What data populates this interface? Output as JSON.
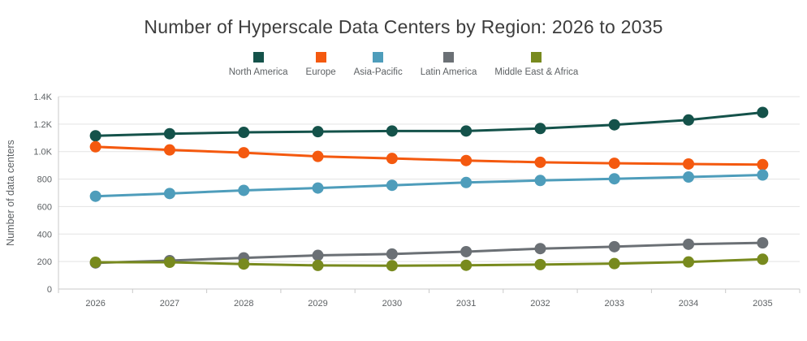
{
  "title": "Number of Hyperscale Data Centers by Region: 2026 to 2035",
  "chart_data": {
    "type": "line",
    "title": "Number of Hyperscale Data Centers by Region: 2026 to 2035",
    "xlabel": "",
    "ylabel": "Number of data centers",
    "categories": [
      "2026",
      "2027",
      "2028",
      "2029",
      "2030",
      "2031",
      "2032",
      "2033",
      "2034",
      "2035"
    ],
    "series": [
      {
        "name": "North America",
        "color": "#14524A",
        "values": [
          1115,
          1130,
          1140,
          1145,
          1150,
          1150,
          1168,
          1195,
          1230,
          1285
        ]
      },
      {
        "name": "Europe",
        "color": "#F4590F",
        "values": [
          1035,
          1012,
          992,
          965,
          950,
          935,
          922,
          915,
          910,
          905
        ]
      },
      {
        "name": "Asia-Pacific",
        "color": "#4E9DBB",
        "values": [
          675,
          695,
          718,
          735,
          755,
          775,
          790,
          802,
          815,
          830
        ]
      },
      {
        "name": "Latin America",
        "color": "#6B7075",
        "values": [
          190,
          207,
          227,
          245,
          255,
          272,
          294,
          308,
          326,
          336
        ]
      },
      {
        "name": "Middle East & Africa",
        "color": "#788A1E",
        "values": [
          195,
          195,
          182,
          172,
          170,
          173,
          178,
          185,
          197,
          217
        ]
      }
    ],
    "ylim": [
      0,
      1400
    ],
    "y_tick_step": 200,
    "y_tick_labels": [
      "0",
      "200",
      "400",
      "600",
      "800",
      "1.0K",
      "1.2K",
      "1.4K"
    ],
    "grid": true,
    "legend_position": "top"
  },
  "style_colors": {
    "title_text": "#3d3d3d",
    "axis_text": "#5d6164",
    "gridline": "#e3e3e3",
    "axis_line": "#c9c9c9"
  }
}
